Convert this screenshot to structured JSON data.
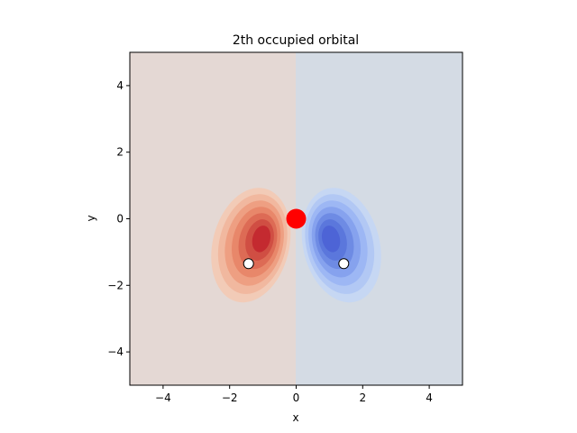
{
  "chart_data": {
    "type": "heatmap",
    "title": "2th occupied orbital",
    "xlabel": "x",
    "ylabel": "y",
    "xlim": [
      -5,
      5
    ],
    "ylim": [
      -5,
      5
    ],
    "xticks": [
      -4,
      -2,
      0,
      2,
      4
    ],
    "yticks": [
      -4,
      -2,
      0,
      2,
      4
    ],
    "xtick_labels": [
      "−4",
      "−2",
      "0",
      "2",
      "4"
    ],
    "ytick_labels": [
      "−4",
      "−2",
      "0",
      "2",
      "4"
    ],
    "colormap": "coolwarm",
    "background_left_color": "#e4d8d4",
    "background_right_color": "#d4dbe4",
    "grid": false,
    "legend": "none",
    "lobes": [
      {
        "sign": "positive",
        "center": [
          -0.95,
          -0.55
        ],
        "color": "#c42a30"
      },
      {
        "sign": "negative",
        "center": [
          0.95,
          -0.55
        ],
        "color": "#4d64d6"
      }
    ],
    "atoms": [
      {
        "element": "O",
        "x": 0.0,
        "y": 0.0,
        "color": "#ff0000"
      },
      {
        "element": "H",
        "x": -1.43,
        "y": -1.35,
        "color": "#ffffff"
      },
      {
        "element": "H",
        "x": 1.43,
        "y": -1.35,
        "color": "#ffffff"
      }
    ]
  }
}
